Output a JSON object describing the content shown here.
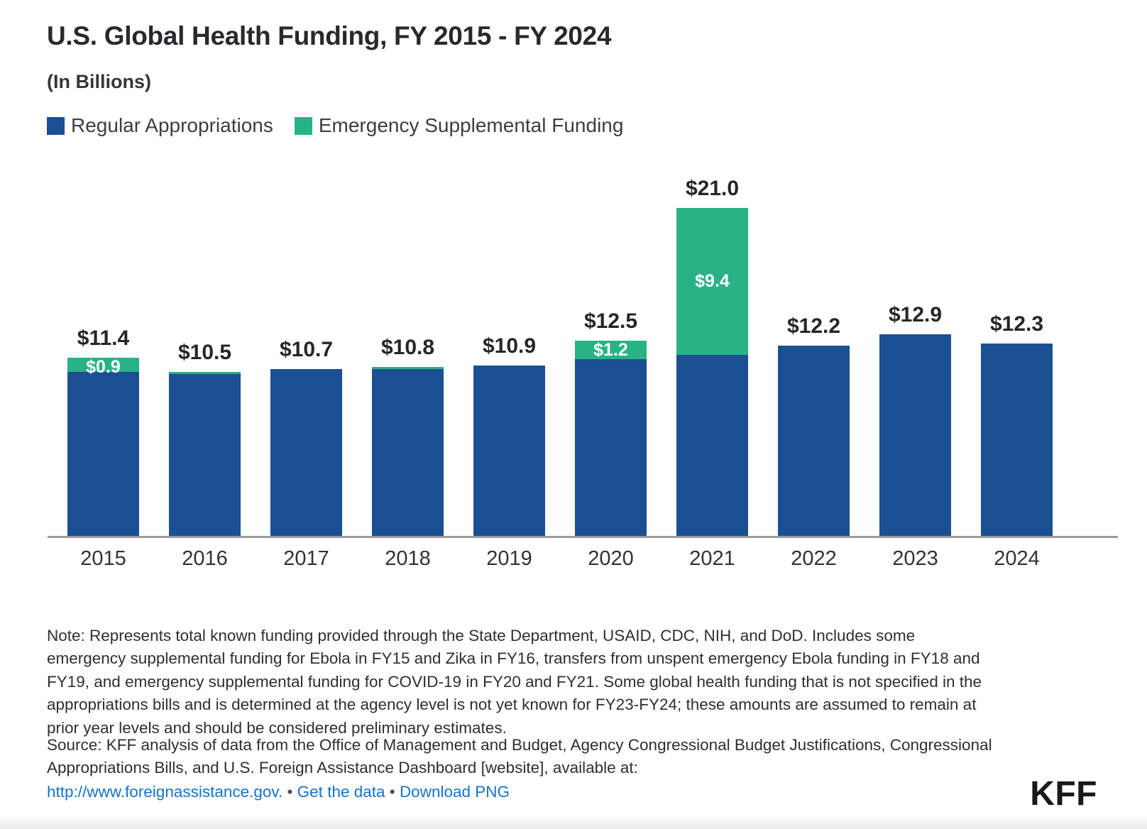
{
  "header": {
    "title": "U.S. Global Health Funding, FY 2015 - FY 2024",
    "subtitle": "(In Billions)"
  },
  "legend": [
    {
      "label": "Regular Appropriations",
      "color": "#1B4F94"
    },
    {
      "label": "Emergency Supplemental Funding",
      "color": "#2AB287"
    }
  ],
  "chart_data": {
    "type": "bar",
    "stacked": true,
    "title": "U.S. Global Health Funding, FY 2015 - FY 2024",
    "ylabel": "(In Billions)",
    "ylim": [
      0,
      22
    ],
    "grid": false,
    "legend_position": "top-left",
    "categories": [
      "2015",
      "2016",
      "2017",
      "2018",
      "2019",
      "2020",
      "2021",
      "2022",
      "2023",
      "2024"
    ],
    "series": [
      {
        "name": "Regular Appropriations",
        "color": "#1B4F94",
        "values": [
          10.5,
          10.4,
          10.7,
          10.7,
          10.9,
          11.3,
          11.6,
          12.2,
          12.9,
          12.3
        ]
      },
      {
        "name": "Emergency Supplemental Funding",
        "color": "#2AB287",
        "values": [
          0.9,
          0.1,
          0,
          0.1,
          0,
          1.2,
          9.4,
          0,
          0,
          0
        ]
      }
    ],
    "totals": [
      11.4,
      10.5,
      10.7,
      10.8,
      10.9,
      12.5,
      21.0,
      12.2,
      12.9,
      12.3
    ],
    "total_labels": [
      "$11.4",
      "$10.5",
      "$10.7",
      "$10.8",
      "$10.9",
      "$12.5",
      "$21.0",
      "$12.2",
      "$12.9",
      "$12.3"
    ],
    "supplemental_labels": [
      "$0.9",
      "",
      "",
      "",
      "",
      "$1.2",
      "$9.4",
      "",
      "",
      ""
    ],
    "axis_color": "#9A9A9A"
  },
  "footer": {
    "note": "Note: Represents total known funding provided through the State Department, USAID, CDC, NIH, and DoD. Includes some emergency supplemental funding for Ebola in FY15 and Zika in FY16, transfers from unspent emergency Ebola funding in FY18 and FY19, and emergency supplemental funding for COVID-19 in FY20 and FY21. Some global health funding that is not specified in the appropriations bills and is determined at the agency level is not yet known for FY23-FY24; these amounts are assumed to remain at prior year levels and should be considered preliminary estimates.",
    "source": "Source: KFF analysis of data from the Office of Management and Budget, Agency Congressional Budget Justifications, Congressional Appropriations Bills, and U.S. Foreign Assistance Dashboard [website], available at:",
    "links": [
      {
        "label": "http://www.foreignassistance.gov."
      },
      {
        "label": "Get the data"
      },
      {
        "label": "Download PNG"
      }
    ],
    "bullet": "•",
    "logo": "KFF",
    "link_color": "#1473CF"
  }
}
